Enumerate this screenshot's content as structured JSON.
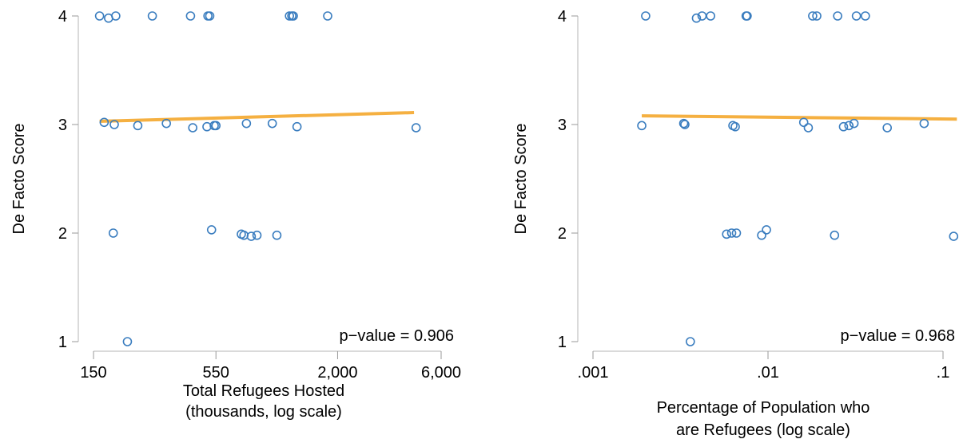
{
  "colors": {
    "points": "#3a7dbf",
    "fit": "#f5b041",
    "axis": "#b5b5b5",
    "text": "#000000"
  },
  "chart_data": [
    {
      "type": "scatter",
      "title": "",
      "xlabel": [
        "Total Refugees Hosted",
        "(thousands, log scale)"
      ],
      "ylabel": "De Facto Score",
      "x_scale": "log",
      "xlim": [
        150,
        6000
      ],
      "ylim": [
        1,
        4
      ],
      "x_ticks": [
        150,
        550,
        2000,
        6000
      ],
      "x_tick_labels": [
        "150",
        "550",
        "2,000",
        "6,000"
      ],
      "y_ticks": [
        1,
        2,
        3,
        4
      ],
      "y_tick_labels": [
        "1",
        "2",
        "3",
        "4"
      ],
      "annotation": "p−value = 0.906",
      "fit_line": {
        "x": [
          160,
          4500
        ],
        "y": [
          3.03,
          3.11
        ]
      },
      "points": [
        {
          "x": 160,
          "y": 4.0
        },
        {
          "x": 176,
          "y": 3.98
        },
        {
          "x": 190,
          "y": 4.0
        },
        {
          "x": 280,
          "y": 4.0
        },
        {
          "x": 420,
          "y": 4.0
        },
        {
          "x": 505,
          "y": 4.0
        },
        {
          "x": 515,
          "y": 4.0
        },
        {
          "x": 1200,
          "y": 4.0
        },
        {
          "x": 1230,
          "y": 4.0
        },
        {
          "x": 1250,
          "y": 4.0
        },
        {
          "x": 1800,
          "y": 4.0
        },
        {
          "x": 168,
          "y": 3.02
        },
        {
          "x": 187,
          "y": 3.0
        },
        {
          "x": 240,
          "y": 2.99
        },
        {
          "x": 325,
          "y": 3.01
        },
        {
          "x": 430,
          "y": 2.97
        },
        {
          "x": 500,
          "y": 2.98
        },
        {
          "x": 540,
          "y": 2.99
        },
        {
          "x": 550,
          "y": 2.99
        },
        {
          "x": 760,
          "y": 3.01
        },
        {
          "x": 1000,
          "y": 3.01
        },
        {
          "x": 1300,
          "y": 2.98
        },
        {
          "x": 4600,
          "y": 2.97
        },
        {
          "x": 185,
          "y": 2.0
        },
        {
          "x": 525,
          "y": 2.03
        },
        {
          "x": 720,
          "y": 1.99
        },
        {
          "x": 740,
          "y": 1.98
        },
        {
          "x": 800,
          "y": 1.97
        },
        {
          "x": 850,
          "y": 1.98
        },
        {
          "x": 1050,
          "y": 1.98
        },
        {
          "x": 215,
          "y": 1.0
        }
      ]
    },
    {
      "type": "scatter",
      "title": "",
      "xlabel": [
        "Percentage of Population who",
        "are Refugees (log scale)"
      ],
      "ylabel": "De Facto Score",
      "x_scale": "log",
      "xlim": [
        0.001,
        0.1
      ],
      "ylim": [
        1,
        4
      ],
      "x_ticks": [
        0.001,
        0.01,
        0.1
      ],
      "x_tick_labels": [
        ".001",
        ".01",
        ".1"
      ],
      "y_ticks": [
        1,
        2,
        3,
        4
      ],
      "y_tick_labels": [
        "1",
        "2",
        "3",
        "4"
      ],
      "annotation": "p−value = 0.968",
      "fit_line": {
        "x": [
          0.0019,
          0.12
        ],
        "y": [
          3.08,
          3.05
        ]
      },
      "points": [
        {
          "x": 0.002,
          "y": 4.0
        },
        {
          "x": 0.0039,
          "y": 3.98
        },
        {
          "x": 0.0042,
          "y": 4.0
        },
        {
          "x": 0.0047,
          "y": 4.0
        },
        {
          "x": 0.0075,
          "y": 4.0
        },
        {
          "x": 0.0076,
          "y": 4.0
        },
        {
          "x": 0.018,
          "y": 4.0
        },
        {
          "x": 0.019,
          "y": 4.0
        },
        {
          "x": 0.025,
          "y": 4.0
        },
        {
          "x": 0.032,
          "y": 4.0
        },
        {
          "x": 0.036,
          "y": 4.0
        },
        {
          "x": 0.0019,
          "y": 2.99
        },
        {
          "x": 0.0033,
          "y": 3.01
        },
        {
          "x": 0.00335,
          "y": 3.0
        },
        {
          "x": 0.0063,
          "y": 2.99
        },
        {
          "x": 0.0065,
          "y": 2.98
        },
        {
          "x": 0.016,
          "y": 3.02
        },
        {
          "x": 0.017,
          "y": 2.97
        },
        {
          "x": 0.027,
          "y": 2.98
        },
        {
          "x": 0.029,
          "y": 2.99
        },
        {
          "x": 0.031,
          "y": 3.01
        },
        {
          "x": 0.048,
          "y": 2.97
        },
        {
          "x": 0.078,
          "y": 3.01
        },
        {
          "x": 0.0058,
          "y": 1.99
        },
        {
          "x": 0.0062,
          "y": 2.0
        },
        {
          "x": 0.0066,
          "y": 2.0
        },
        {
          "x": 0.0092,
          "y": 1.98
        },
        {
          "x": 0.0098,
          "y": 2.03
        },
        {
          "x": 0.024,
          "y": 1.98
        },
        {
          "x": 0.115,
          "y": 1.97
        },
        {
          "x": 0.0036,
          "y": 1.0
        }
      ]
    }
  ]
}
